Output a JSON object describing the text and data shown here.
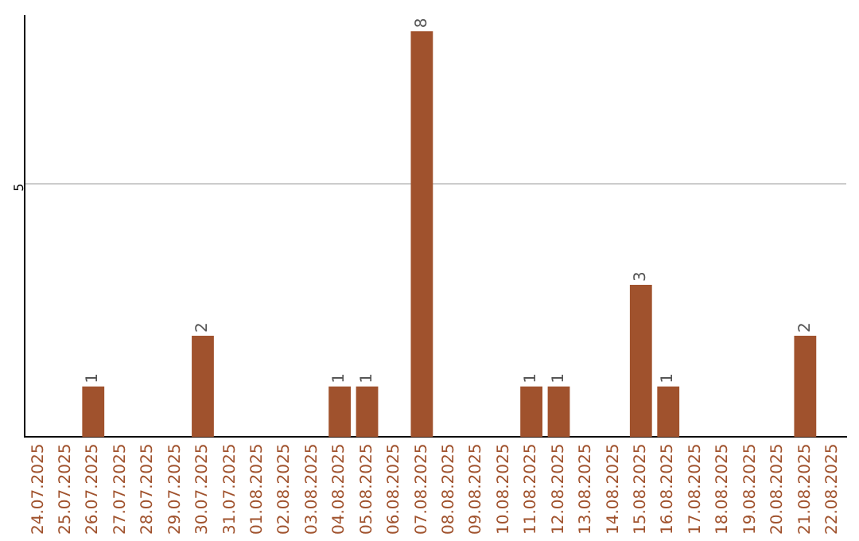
{
  "chart_data": {
    "type": "bar",
    "categories": [
      "24.07.2025",
      "25.07.2025",
      "26.07.2025",
      "27.07.2025",
      "28.07.2025",
      "29.07.2025",
      "30.07.2025",
      "31.07.2025",
      "01.08.2025",
      "02.08.2025",
      "03.08.2025",
      "04.08.2025",
      "05.08.2025",
      "06.08.2025",
      "07.08.2025",
      "08.08.2025",
      "09.08.2025",
      "10.08.2025",
      "11.08.2025",
      "12.08.2025",
      "13.08.2025",
      "14.08.2025",
      "15.08.2025",
      "16.08.2025",
      "17.08.2025",
      "18.08.2025",
      "19.08.2025",
      "20.08.2025",
      "21.08.2025",
      "22.08.2025"
    ],
    "values": [
      0,
      0,
      1,
      0,
      0,
      0,
      2,
      0,
      0,
      0,
      0,
      1,
      1,
      0,
      8,
      0,
      0,
      0,
      1,
      1,
      0,
      0,
      3,
      1,
      0,
      0,
      0,
      0,
      2,
      0
    ],
    "value_labels": [
      null,
      null,
      "1",
      null,
      null,
      null,
      "2",
      null,
      null,
      null,
      null,
      "1",
      "1",
      null,
      "8",
      null,
      null,
      null,
      "1",
      "1",
      null,
      null,
      "3",
      "1",
      null,
      null,
      null,
      null,
      "2",
      null
    ],
    "color": "#a0522d",
    "ylim": [
      0,
      8.3
    ],
    "yticks": [
      5
    ],
    "grid": "y",
    "legend": false
  }
}
